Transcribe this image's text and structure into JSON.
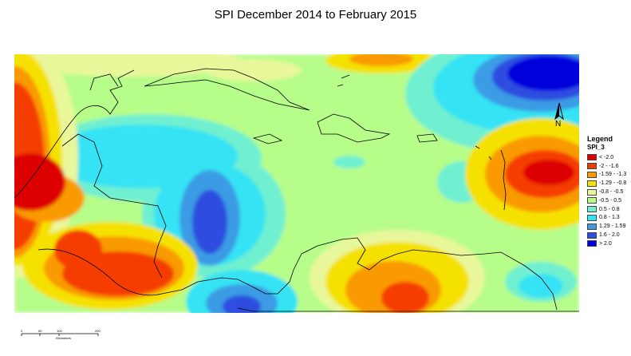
{
  "title": "SPI December 2014 to February 2015",
  "legend": {
    "title": "Legend",
    "layer": "SPI_3",
    "items": [
      {
        "label": "< -2.0",
        "color": "#dd0000"
      },
      {
        "label": "-2 - -1.6",
        "color": "#f53c00"
      },
      {
        "label": "-1.59 - -1.3",
        "color": "#f99a00"
      },
      {
        "label": "-1.29 - -0.8",
        "color": "#f5e100"
      },
      {
        "label": "-0.8 - -0.5",
        "color": "#e9f79b"
      },
      {
        "label": "-0.5 - 0.5",
        "color": "#b7fd8a"
      },
      {
        "label": "0.5 - 0.8",
        "color": "#6ff0d0"
      },
      {
        "label": "0.8 - 1.3",
        "color": "#34e3f4"
      },
      {
        "label": "1.29 - 1.59",
        "color": "#3a9be4"
      },
      {
        "label": "1.6 - 2.0",
        "color": "#2d4ee0"
      },
      {
        "label": "> 2.0",
        "color": "#0000dd"
      }
    ]
  },
  "north_arrow": {
    "label": "N"
  },
  "scale_bar": {
    "ticks": [
      "0",
      "50",
      "100",
      "200"
    ],
    "unit": "Kilometers"
  }
}
